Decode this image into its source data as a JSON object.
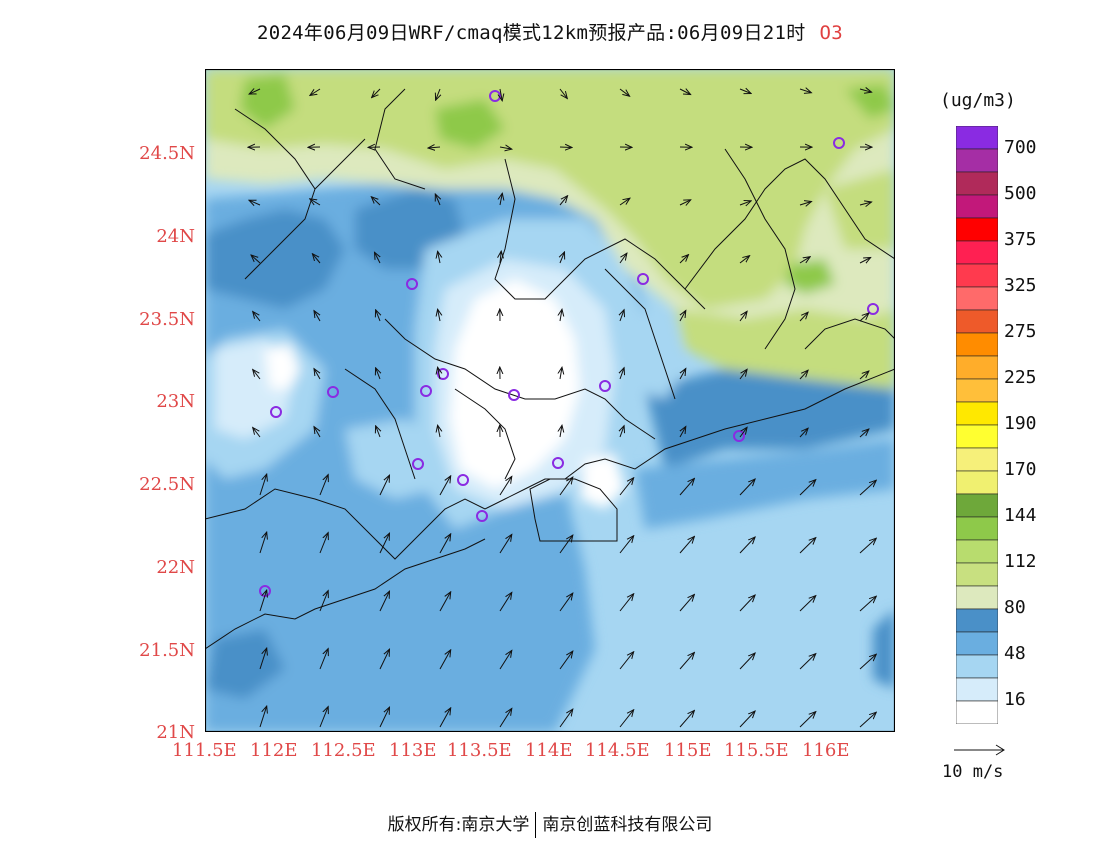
{
  "title": {
    "main": "2024年06月09日WRF/cmaq模式12km预报产品:06月09日21时",
    "species": "O3"
  },
  "axes": {
    "y_labels": [
      "24.5N",
      "24N",
      "23.5N",
      "23N",
      "22.5N",
      "22N",
      "21.5N",
      "21N"
    ],
    "x_labels": [
      "111.5E",
      "112E",
      "112.5E",
      "113E",
      "113.5E",
      "114E",
      "114.5E",
      "115E",
      "115.5E",
      "116E"
    ]
  },
  "colorbar": {
    "unit": "(ug/m3)",
    "labels": [
      "700",
      "500",
      "375",
      "325",
      "275",
      "225",
      "190",
      "170",
      "144",
      "112",
      "80",
      "48",
      "16"
    ],
    "colors": [
      "#8a2be2",
      "#a52ea5",
      "#b02a5a",
      "#c2187a",
      "#ff0000",
      "#ff2052",
      "#ff3a4e",
      "#ff6a6a",
      "#ee5a2a",
      "#ff8c00",
      "#ffad2a",
      "#ffbf3a",
      "#ffe800",
      "#ffff30",
      "#f6f07a",
      "#f0f070",
      "#6ea83a",
      "#8ec94a",
      "#b8dc6e",
      "#c8e080",
      "#dde9be",
      "#4a90c8",
      "#6aaee0",
      "#a6d6f2",
      "#d6ecfa",
      "#ffffff"
    ]
  },
  "vector_legend": {
    "label": "10 m/s"
  },
  "footer": {
    "left": "版权所有:南京大学",
    "right": "南京创蓝科技有限公司"
  },
  "map": {
    "colors": {
      "c16": "#ffffff",
      "c32": "#d6ecfa",
      "c48": "#a6d6f2",
      "c64": "#6aaee0",
      "c80": "#4a90c8",
      "c96": "#dde9be",
      "c112": "#c4dd7e",
      "c128": "#8ec94a"
    }
  }
}
